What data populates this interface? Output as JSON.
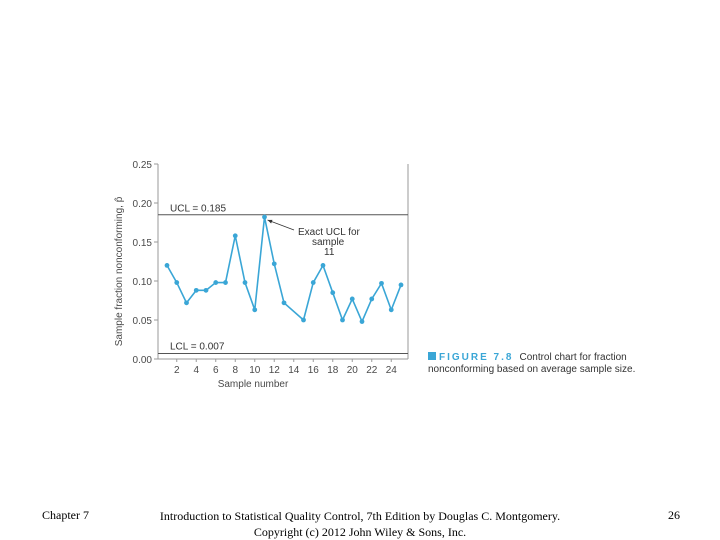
{
  "chart_data": {
    "type": "line",
    "xlabel": "Sample number",
    "ylabel": "Sample fraction nonconforming, p̂",
    "xlim": [
      0,
      26
    ],
    "ylim": [
      0,
      0.25
    ],
    "x_ticks": [
      2,
      4,
      6,
      8,
      10,
      12,
      14,
      16,
      18,
      20,
      22,
      24
    ],
    "y_ticks": [
      "0.00",
      "0.05",
      "0.10",
      "0.15",
      "0.20",
      "0.25"
    ],
    "series": [
      {
        "x": [
          1,
          2,
          3,
          4,
          5,
          6,
          7,
          8,
          9,
          10,
          11,
          12,
          13,
          15,
          16,
          17,
          18,
          19,
          20,
          21,
          22,
          23,
          24,
          25
        ],
        "values": [
          0.12,
          0.098,
          0.072,
          0.088,
          0.088,
          0.098,
          0.098,
          0.158,
          0.098,
          0.063,
          0.182,
          0.122,
          0.072,
          0.05,
          0.098,
          0.12,
          0.085,
          0.05,
          0.077,
          0.048,
          0.077,
          0.097,
          0.063,
          0.095
        ]
      }
    ],
    "ucl": {
      "label": "UCL = 0.185",
      "value": 0.185
    },
    "lcl": {
      "label": "LCL = 0.007",
      "value": 0.007
    },
    "annotation": {
      "lines": [
        "Exact UCL for",
        "sample",
        "11"
      ],
      "point_x": 11
    },
    "grid": false,
    "line_color": "#3aa6d6",
    "limit_color": "#555555"
  },
  "figure": {
    "label": "FIGURE 7.8",
    "caption": "Control chart for fraction nonconforming based on average sample size."
  },
  "footer": {
    "chapter": "Chapter 7",
    "book_line1": "Introduction to Statistical Quality Control, 7th Edition by Douglas C. Montgomery.",
    "book_line2": "Copyright (c) 2012 John Wiley & Sons, Inc.",
    "page_number": "26"
  }
}
